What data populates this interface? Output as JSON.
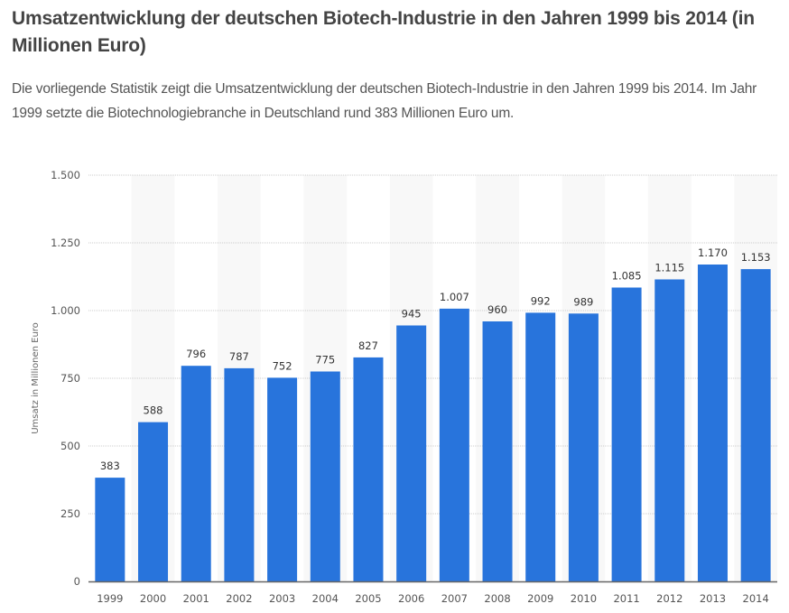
{
  "header": {
    "title": "Umsatzentwicklung der deutschen Biotech-Industrie in den Jahren 1999 bis 2014 (in Millionen Euro)",
    "description": "Die vorliegende Statistik zeigt die Umsatzentwicklung der deutschen Biotech-Industrie in den Jahren 1999 bis 2014. Im Jahr 1999 setzte die Biotechnologiebranche in Deutschland rund 383 Millionen Euro um."
  },
  "chart_data": {
    "type": "bar",
    "title": "Umsatzentwicklung der deutschen Biotech-Industrie in den Jahren 1999 bis 2014 (in Millionen Euro)",
    "xlabel": "",
    "ylabel": "Umsatz in Millionen Euro",
    "categories": [
      "1999",
      "2000",
      "2001",
      "2002",
      "2003",
      "2004",
      "2005",
      "2006",
      "2007",
      "2008",
      "2009",
      "2010",
      "2011",
      "2012",
      "2013",
      "2014"
    ],
    "values": [
      383,
      588,
      796,
      787,
      752,
      775,
      827,
      945,
      1007,
      960,
      992,
      989,
      1085,
      1115,
      1170,
      1153
    ],
    "value_labels": [
      "383",
      "588",
      "796",
      "787",
      "752",
      "775",
      "827",
      "945",
      "1.007",
      "960",
      "992",
      "989",
      "1.085",
      "1.115",
      "1.170",
      "1.153"
    ],
    "ylim": [
      0,
      1500
    ],
    "yticks": [
      0,
      250,
      500,
      750,
      1000,
      1250,
      1500
    ],
    "ytick_labels": [
      "0",
      "250",
      "500",
      "750",
      "1.000",
      "1.250",
      "1.500"
    ],
    "grid": true,
    "legend": "none",
    "colors": {
      "bar": "#2874dc",
      "band": "#f8f8f8",
      "grid": "#cccccc",
      "axis": "#666666"
    }
  }
}
